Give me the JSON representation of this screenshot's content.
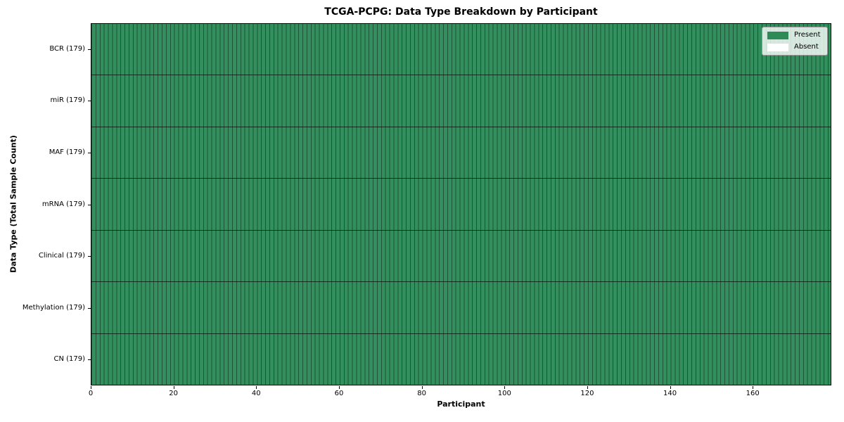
{
  "chart_data": {
    "type": "heatmap",
    "title": "TCGA-PCPG: Data Type Breakdown by Participant",
    "xlabel": "Participant",
    "ylabel": "Data Type (Total Sample Count)",
    "n_participants": 179,
    "x_range": [
      0,
      179
    ],
    "x_ticks": [
      "0",
      "20",
      "40",
      "60",
      "80",
      "100",
      "120",
      "140",
      "160"
    ],
    "x_tick_values": [
      0,
      20,
      40,
      60,
      80,
      100,
      120,
      140,
      160
    ],
    "grid": "every cell outlined with thin dark border",
    "legend_position": "upper right inside axes",
    "legend": [
      {
        "label": "Present",
        "color": "#2e8b57"
      },
      {
        "label": "Absent",
        "color": "#ffffff"
      }
    ],
    "rows": [
      {
        "label": "BCR (179)",
        "data_type": "BCR",
        "total_sample_count": 179,
        "present_count": 179,
        "absent_count": 0
      },
      {
        "label": "miR (179)",
        "data_type": "miR",
        "total_sample_count": 179,
        "present_count": 179,
        "absent_count": 0
      },
      {
        "label": "MAF (179)",
        "data_type": "MAF",
        "total_sample_count": 179,
        "present_count": 179,
        "absent_count": 0
      },
      {
        "label": "mRNA (179)",
        "data_type": "mRNA",
        "total_sample_count": 179,
        "present_count": 179,
        "absent_count": 0
      },
      {
        "label": "Clinical (179)",
        "data_type": "Clinical",
        "total_sample_count": 179,
        "present_count": 179,
        "absent_count": 0
      },
      {
        "label": "Methylation (179)",
        "data_type": "Methylation",
        "total_sample_count": 179,
        "present_count": 179,
        "absent_count": 0
      },
      {
        "label": "CN (179)",
        "data_type": "CN",
        "total_sample_count": 179,
        "present_count": 179,
        "absent_count": 0
      }
    ],
    "colors": {
      "present": "#2e8b57",
      "absent": "#ffffff",
      "cell_border": "rgba(0,0,0,0.42)",
      "row_separator": "rgba(0,0,0,0.65)",
      "axes_spine": "#000000"
    }
  }
}
